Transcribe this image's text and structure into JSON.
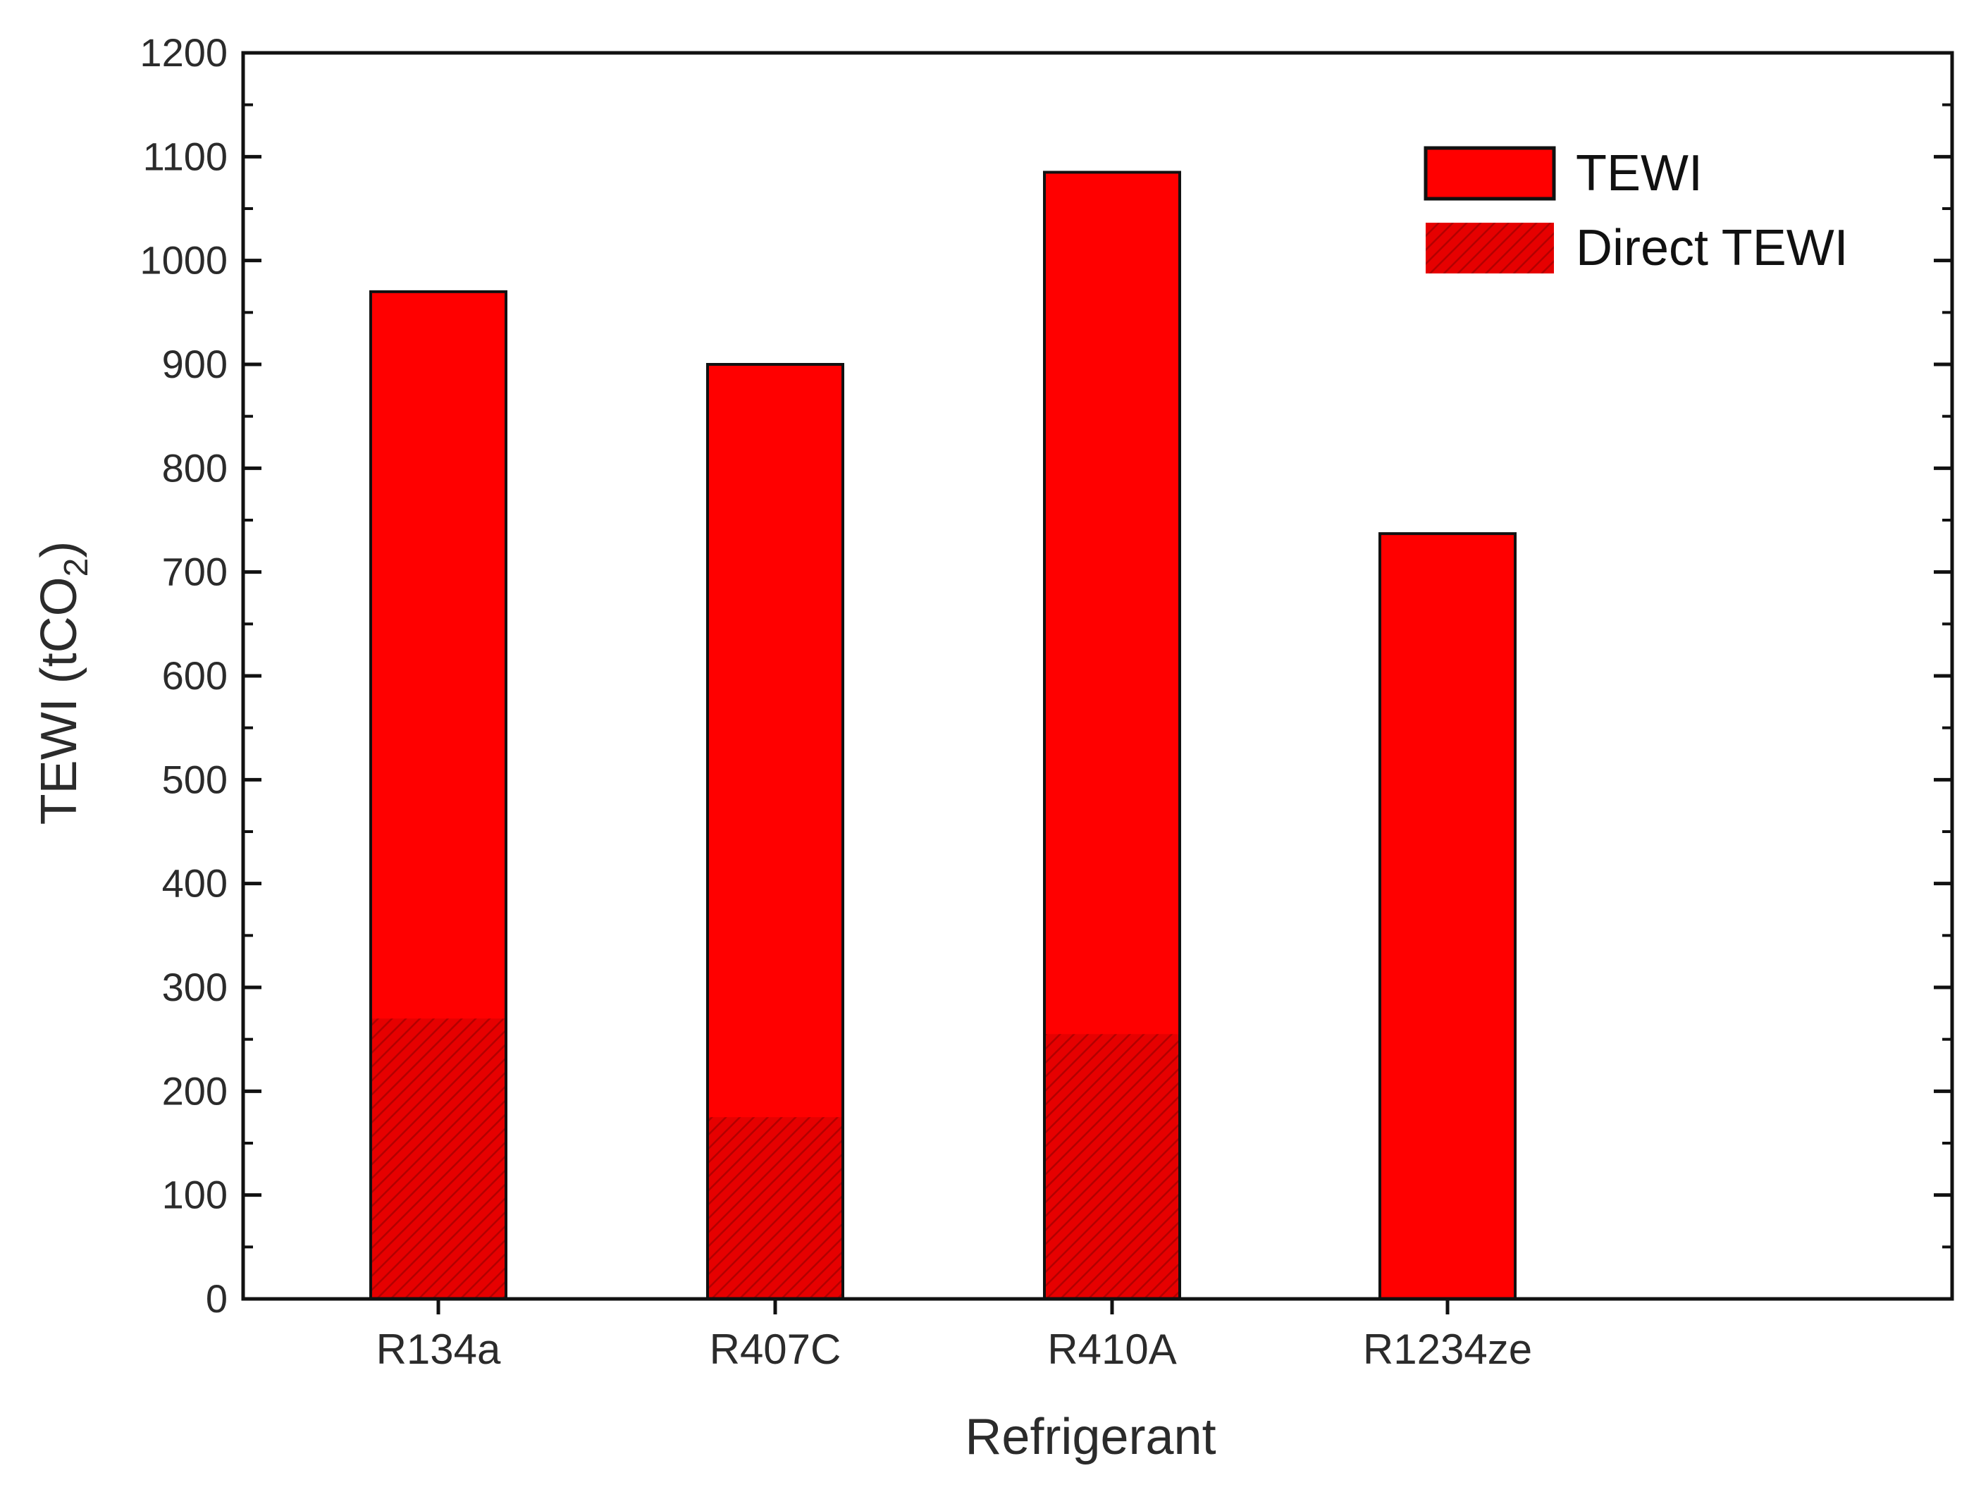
{
  "chart_data": {
    "type": "bar",
    "categories": [
      "R134a",
      "R407C",
      "R410A",
      "R1234ze"
    ],
    "series": [
      {
        "name": "TEWI",
        "values": [
          970,
          900,
          1085,
          737
        ],
        "color": "#ff0000"
      },
      {
        "name": "Direct TEWI",
        "values": [
          270,
          175,
          255,
          0
        ],
        "color": "#e60000",
        "pattern": "hatched"
      }
    ],
    "xlabel": "Refrigerant",
    "ylabel": {
      "main": "TEWI (tCO",
      "subscript": "2",
      "close": ")"
    },
    "ylim": [
      0,
      1200
    ],
    "yticks": [
      0,
      100,
      200,
      300,
      400,
      500,
      600,
      700,
      800,
      900,
      1000,
      1100,
      1200
    ],
    "grid": false,
    "legend_position": "top-right",
    "overlay": true
  }
}
